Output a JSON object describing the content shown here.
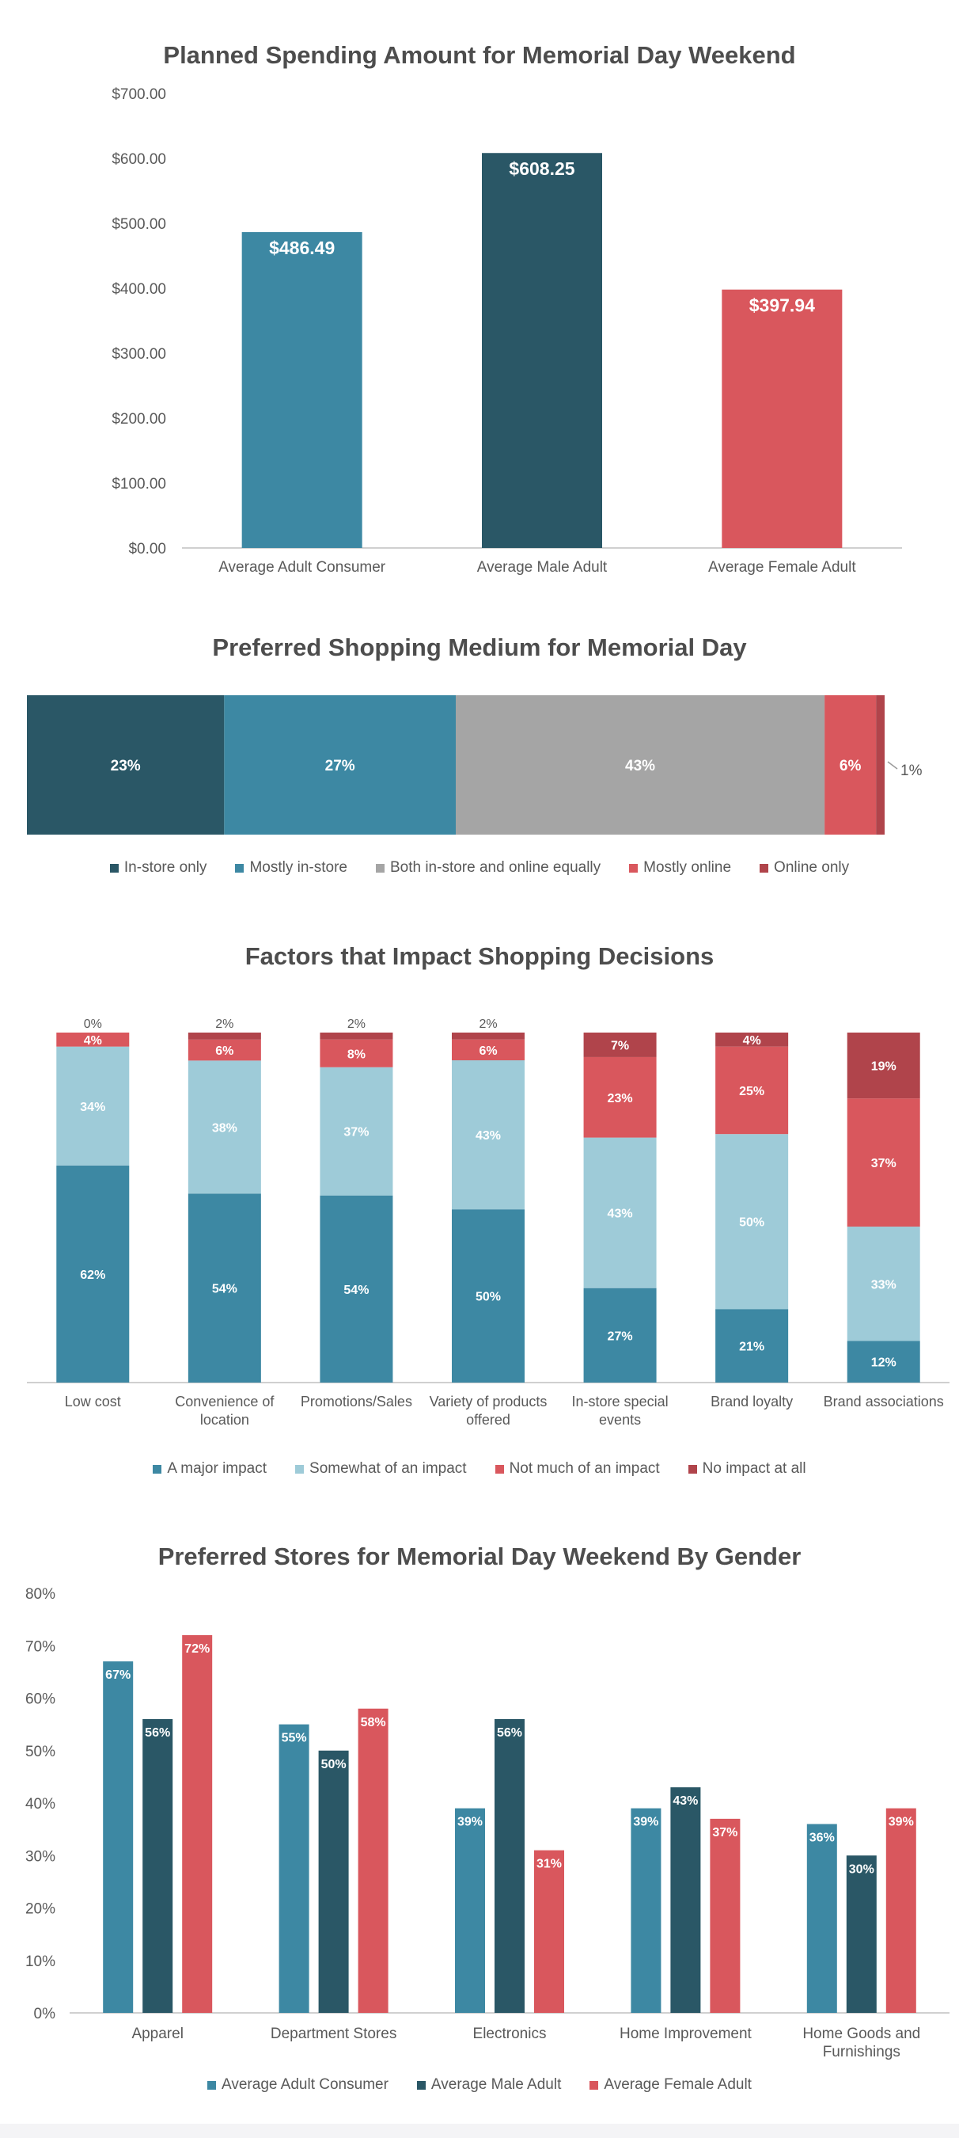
{
  "colors": {
    "teal": "#3d88a3",
    "dark_teal": "#2a5766",
    "light_blue": "#9ecbd8",
    "coral": "#d9575d",
    "dark_red": "#b0444b",
    "gray": "#a5a5a5",
    "axis": "#d0d0d0",
    "text": "#595959"
  },
  "chart_data": [
    {
      "type": "bar",
      "title": "Planned Spending Amount for Memorial Day Weekend",
      "categories": [
        "Average Adult Consumer",
        "Average Male Adult",
        "Average Female Adult"
      ],
      "values": [
        486.49,
        608.25,
        397.94
      ],
      "data_labels": [
        "$486.49",
        "$608.25",
        "$397.94"
      ],
      "bar_colors": [
        "#3d88a3",
        "#2a5766",
        "#d9575d"
      ],
      "ylim": [
        0,
        700
      ],
      "yticks": [
        0,
        100,
        200,
        300,
        400,
        500,
        600,
        700
      ],
      "ytick_labels": [
        "$0.00",
        "$100.00",
        "$200.00",
        "$300.00",
        "$400.00",
        "$500.00",
        "$600.00",
        "$700.00"
      ],
      "grid": false
    },
    {
      "type": "bar",
      "orientation": "horizontal-stacked-100",
      "title": "Preferred Shopping Medium for Memorial Day",
      "series": [
        {
          "name": "In-store only",
          "value": 23,
          "label": "23%",
          "color": "#2a5766"
        },
        {
          "name": "Mostly in-store",
          "value": 27,
          "label": "27%",
          "color": "#3d88a3"
        },
        {
          "name": "Both in-store and online equally",
          "value": 43,
          "label": "43%",
          "color": "#a5a5a5"
        },
        {
          "name": "Mostly online",
          "value": 6,
          "label": "6%",
          "color": "#d9575d"
        },
        {
          "name": "Online only",
          "value": 1,
          "label": "1%",
          "color": "#b0444b"
        }
      ],
      "legend": "bottom"
    },
    {
      "type": "bar",
      "orientation": "vertical-stacked-100",
      "title": "Factors that Impact Shopping Decisions",
      "categories": [
        [
          "Low cost"
        ],
        [
          "Convenience of",
          "location"
        ],
        [
          "Promotions/Sales"
        ],
        [
          "Variety of products",
          "offered"
        ],
        [
          "In-store special",
          "events"
        ],
        [
          "Brand loyalty"
        ],
        [
          "Brand associations"
        ]
      ],
      "series": [
        {
          "name": "A major impact",
          "color": "#3d88a3",
          "values": [
            62,
            54,
            54,
            50,
            27,
            21,
            12
          ],
          "labels": [
            "62%",
            "54%",
            "54%",
            "50%",
            "27%",
            "21%",
            "12%"
          ]
        },
        {
          "name": "Somewhat of an impact",
          "color": "#9ecbd8",
          "values": [
            34,
            38,
            37,
            43,
            43,
            50,
            33
          ],
          "labels": [
            "34%",
            "38%",
            "37%",
            "43%",
            "43%",
            "50%",
            "33%"
          ]
        },
        {
          "name": "Not much of an impact",
          "color": "#d9575d",
          "values": [
            4,
            6,
            8,
            6,
            23,
            25,
            37
          ],
          "labels": [
            "4%",
            "6%",
            "8%",
            "6%",
            "23%",
            "25%",
            "37%"
          ]
        },
        {
          "name": "No impact at all",
          "color": "#b0444b",
          "values": [
            0,
            2,
            2,
            2,
            7,
            4,
            19
          ],
          "labels": [
            "0%",
            "2%",
            "2%",
            "2%",
            "7%",
            "4%",
            "19%"
          ]
        }
      ],
      "legend": "bottom"
    },
    {
      "type": "bar",
      "orientation": "vertical-grouped",
      "title": "Preferred Stores for Memorial Day Weekend By Gender",
      "categories": [
        [
          "Apparel"
        ],
        [
          "Department Stores"
        ],
        [
          "Electronics"
        ],
        [
          "Home Improvement"
        ],
        [
          "Home Goods and",
          "Furnishings"
        ]
      ],
      "series": [
        {
          "name": "Average Adult Consumer",
          "color": "#3d88a3",
          "values": [
            67,
            55,
            39,
            39,
            36
          ],
          "labels": [
            "67%",
            "55%",
            "39%",
            "39%",
            "36%"
          ]
        },
        {
          "name": "Average Male Adult",
          "color": "#2a5766",
          "values": [
            56,
            50,
            56,
            43,
            30
          ],
          "labels": [
            "56%",
            "50%",
            "56%",
            "43%",
            "30%"
          ]
        },
        {
          "name": "Average Female Adult",
          "color": "#d9575d",
          "values": [
            72,
            58,
            31,
            37,
            39
          ],
          "labels": [
            "72%",
            "58%",
            "31%",
            "37%",
            "39%"
          ]
        }
      ],
      "ylim": [
        0,
        80
      ],
      "yticks": [
        0,
        10,
        20,
        30,
        40,
        50,
        60,
        70,
        80
      ],
      "ytick_labels": [
        "0%",
        "10%",
        "20%",
        "30%",
        "40%",
        "50%",
        "60%",
        "70%",
        "80%"
      ],
      "legend": "bottom"
    }
  ]
}
